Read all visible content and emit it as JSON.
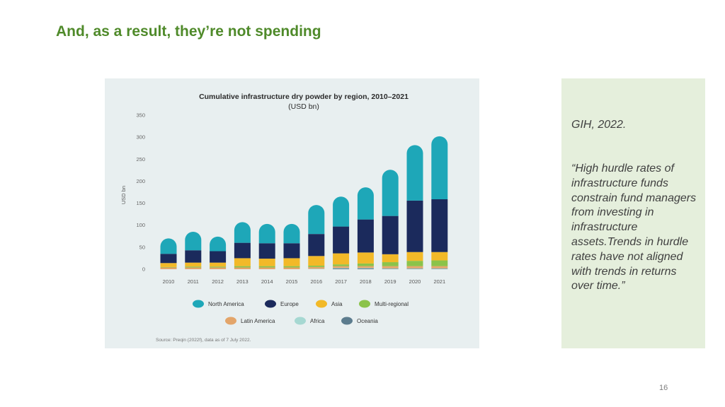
{
  "slide": {
    "title": "And, as a result, they’re not spending",
    "page_number": "16"
  },
  "side_panel": {
    "citation": "GIH, 2022.",
    "quote": "“High hurdle rates of infrastructure funds constrain fund managers from investing in infrastructure assets.Trends in hurdle rates have not aligned with trends in returns over time.”"
  },
  "chart_data": {
    "type": "bar",
    "stacked": true,
    "title": "Cumulative infrastructure dry powder by region, 2010–2021",
    "subtitle": "(USD bn)",
    "xlabel": "",
    "ylabel": "USD bn",
    "ylim": [
      0,
      350
    ],
    "yticks": [
      0,
      50,
      100,
      150,
      200,
      250,
      300,
      350
    ],
    "grid": false,
    "categories": [
      "2010",
      "2011",
      "2012",
      "2013",
      "2014",
      "2015",
      "2016",
      "2017",
      "2018",
      "2019",
      "2020",
      "2021"
    ],
    "series": [
      {
        "name": "Oceania",
        "color": "#5c7c8e",
        "values": [
          0,
          0,
          0,
          0,
          0,
          0,
          0,
          2,
          2,
          1,
          1,
          1
        ]
      },
      {
        "name": "Africa",
        "color": "#a6d8d2",
        "values": [
          0,
          0,
          0,
          0,
          0,
          0,
          1,
          1,
          1,
          1,
          1,
          1
        ]
      },
      {
        "name": "Latin America",
        "color": "#e3a56a",
        "values": [
          4,
          4,
          4,
          4,
          4,
          4,
          4,
          4,
          4,
          5,
          5,
          5
        ]
      },
      {
        "name": "Multi-regional",
        "color": "#8bc34a",
        "values": [
          1,
          2,
          2,
          3,
          3,
          3,
          3,
          4,
          6,
          9,
          12,
          13
        ]
      },
      {
        "name": "Asia",
        "color": "#f2b928",
        "values": [
          9,
          9,
          9,
          18,
          17,
          18,
          22,
          25,
          25,
          18,
          20,
          19
        ]
      },
      {
        "name": "Europe",
        "color": "#1b2a5c",
        "values": [
          21,
          28,
          26,
          35,
          35,
          34,
          50,
          61,
          75,
          87,
          117,
          120
        ]
      },
      {
        "name": "North America",
        "color": "#1ea7b8",
        "values": [
          35,
          42,
          33,
          47,
          44,
          44,
          66,
          68,
          73,
          105,
          126,
          143
        ]
      }
    ],
    "legend": {
      "placement": "bottom",
      "rows": [
        [
          "North America",
          "Europe",
          "Asia",
          "Multi-regional"
        ],
        [
          "Latin America",
          "Africa",
          "Oceania"
        ]
      ]
    },
    "source": "Source: Preqin (2022f), data as of 7 July 2022."
  }
}
